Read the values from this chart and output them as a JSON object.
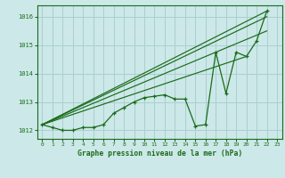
{
  "background_color": "#cce8e8",
  "grid_color": "#aacfcf",
  "line_color": "#1a6b1a",
  "title": "Graphe pression niveau de la mer (hPa)",
  "xlim": [
    -0.5,
    23.5
  ],
  "ylim": [
    1011.7,
    1016.4
  ],
  "yticks": [
    1012,
    1013,
    1014,
    1015,
    1016
  ],
  "xticks": [
    0,
    1,
    2,
    3,
    4,
    5,
    6,
    7,
    8,
    9,
    10,
    11,
    12,
    13,
    14,
    15,
    16,
    17,
    18,
    19,
    20,
    21,
    22,
    23
  ],
  "main_series": [
    1012.2,
    1012.1,
    1012.0,
    1012.0,
    1012.1,
    1012.1,
    1012.2,
    1012.6,
    1012.8,
    1013.0,
    1013.15,
    1013.2,
    1013.25,
    1013.1,
    1013.1,
    1012.15,
    1012.2,
    1014.75,
    1013.3,
    1014.75,
    1014.6,
    1015.15,
    1016.2
  ],
  "straight_lines": [
    [
      [
        0,
        1012.2
      ],
      [
        22,
        1016.2
      ]
    ],
    [
      [
        0,
        1012.2
      ],
      [
        22,
        1016.0
      ]
    ],
    [
      [
        0,
        1012.2
      ],
      [
        22,
        1015.5
      ]
    ],
    [
      [
        0,
        1012.2
      ],
      [
        20,
        1014.6
      ]
    ]
  ]
}
